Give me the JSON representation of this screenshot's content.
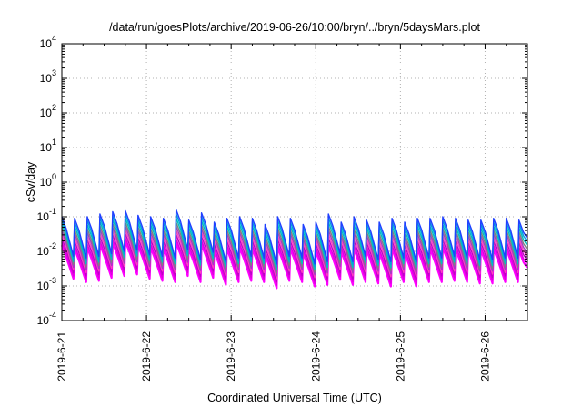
{
  "chart_data": {
    "type": "line",
    "title": "/data/run/goesPlots/archive/2019-06-26/10:00/bryn/../bryn/5daysMars.plot",
    "xlabel": "Coordinated Universal Time (UTC)",
    "ylabel": "cSv/day",
    "yscale": "log",
    "ylim": [
      0.0001,
      10000
    ],
    "xlim": [
      "2019-06-21T00:00",
      "2019-06-26T12:00"
    ],
    "grid": true,
    "legend": "none",
    "x_ticks": [
      "2019-6-21",
      "2019-6-22",
      "2019-6-23",
      "2019-6-24",
      "2019-6-25",
      "2019-6-26"
    ],
    "y_ticks": [
      {
        "base": "10",
        "exp": "-4"
      },
      {
        "base": "10",
        "exp": "-3"
      },
      {
        "base": "10",
        "exp": "-2"
      },
      {
        "base": "10",
        "exp": "-1"
      },
      {
        "base": "10",
        "exp": "0"
      },
      {
        "base": "10",
        "exp": "1"
      },
      {
        "base": "10",
        "exp": "2"
      },
      {
        "base": "10",
        "exp": "3"
      },
      {
        "base": "10",
        "exp": "4"
      }
    ],
    "cycle_hours": 3.6,
    "cycle_peaks_lower_envelope": [
      0.015,
      0.012,
      0.013,
      0.016,
      0.018,
      0.02,
      0.015,
      0.013,
      0.012,
      0.018,
      0.012,
      0.016,
      0.01,
      0.012,
      0.013,
      0.012,
      0.008,
      0.013,
      0.012,
      0.009,
      0.01,
      0.014,
      0.01,
      0.012,
      0.011,
      0.009,
      0.012,
      0.009,
      0.012,
      0.012,
      0.013,
      0.012,
      0.011,
      0.011,
      0.012,
      0.012,
      0.011
    ],
    "cycle_peaks_upper_envelope": [
      0.1,
      0.09,
      0.1,
      0.12,
      0.14,
      0.15,
      0.11,
      0.1,
      0.09,
      0.16,
      0.08,
      0.13,
      0.07,
      0.09,
      0.1,
      0.09,
      0.06,
      0.1,
      0.09,
      0.06,
      0.07,
      0.12,
      0.07,
      0.1,
      0.08,
      0.07,
      0.09,
      0.07,
      0.09,
      0.09,
      0.1,
      0.09,
      0.08,
      0.08,
      0.09,
      0.09,
      0.08
    ],
    "trough_ratio": 0.09,
    "series": [
      {
        "color": "#ff00ff",
        "level": 0.0
      },
      {
        "color": "#e000e0",
        "level": 0.12
      },
      {
        "color": "#c000c8",
        "level": 0.25
      },
      {
        "color": "#ff40c0",
        "level": 0.38
      },
      {
        "color": "#a040c0",
        "level": 0.5
      },
      {
        "color": "#808080",
        "level": 0.62
      },
      {
        "color": "#00c0c0",
        "level": 0.75
      },
      {
        "color": "#00a0e0",
        "level": 0.88
      },
      {
        "color": "#2040ff",
        "level": 1.0
      }
    ]
  }
}
